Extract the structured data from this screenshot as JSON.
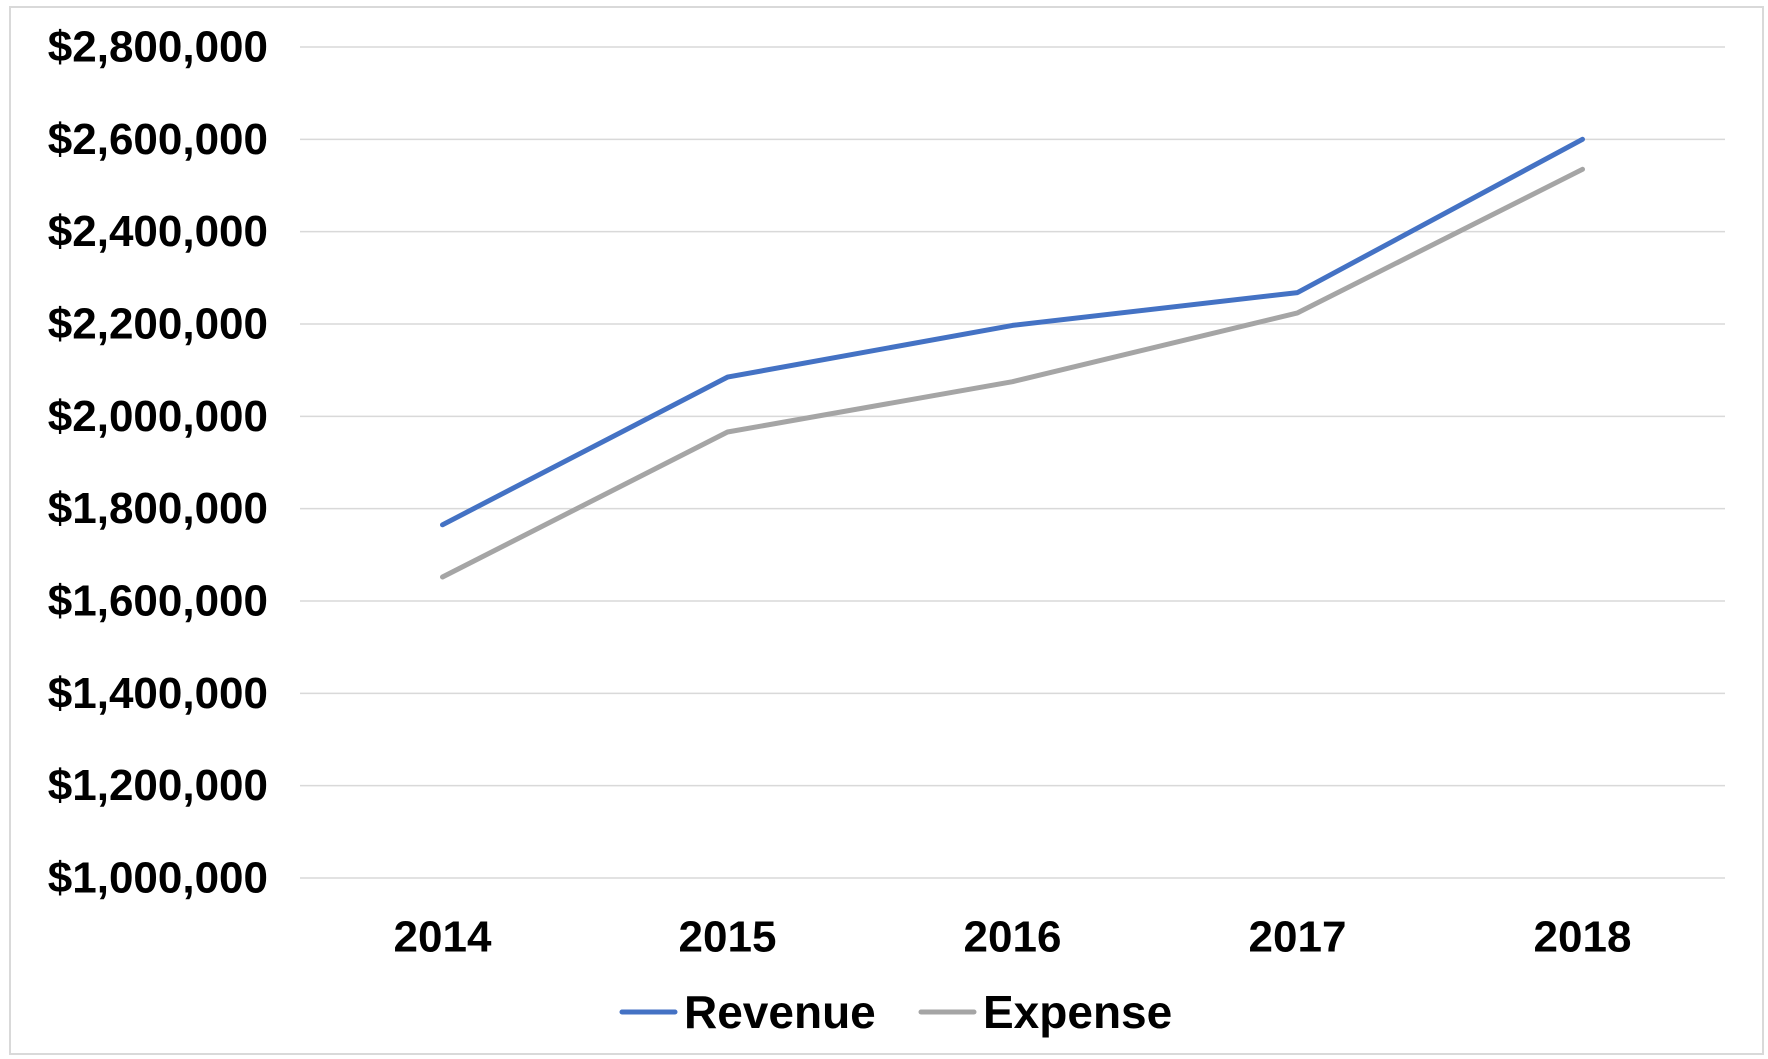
{
  "chart_data": {
    "type": "line",
    "title": "",
    "xlabel": "",
    "ylabel": "",
    "categories": [
      "2014",
      "2015",
      "2016",
      "2017",
      "2018"
    ],
    "ylim": [
      1000000,
      2800000
    ],
    "yticks": [
      1000000,
      1200000,
      1400000,
      1600000,
      1800000,
      2000000,
      2200000,
      2400000,
      2600000,
      2800000
    ],
    "ytick_labels": [
      "$1,000,000",
      "$1,200,000",
      "$1,400,000",
      "$1,600,000",
      "$1,800,000",
      "$2,000,000",
      "$2,200,000",
      "$2,400,000",
      "$2,600,000",
      "$2,800,000"
    ],
    "grid": true,
    "legend_position": "bottom",
    "series": [
      {
        "name": "Revenue",
        "color": "#4472c4",
        "values": [
          1765000,
          2085000,
          2197000,
          2268000,
          2600000
        ]
      },
      {
        "name": "Expense",
        "color": "#a5a5a5",
        "values": [
          1652000,
          1966000,
          2075000,
          2224000,
          2535000
        ]
      }
    ]
  }
}
